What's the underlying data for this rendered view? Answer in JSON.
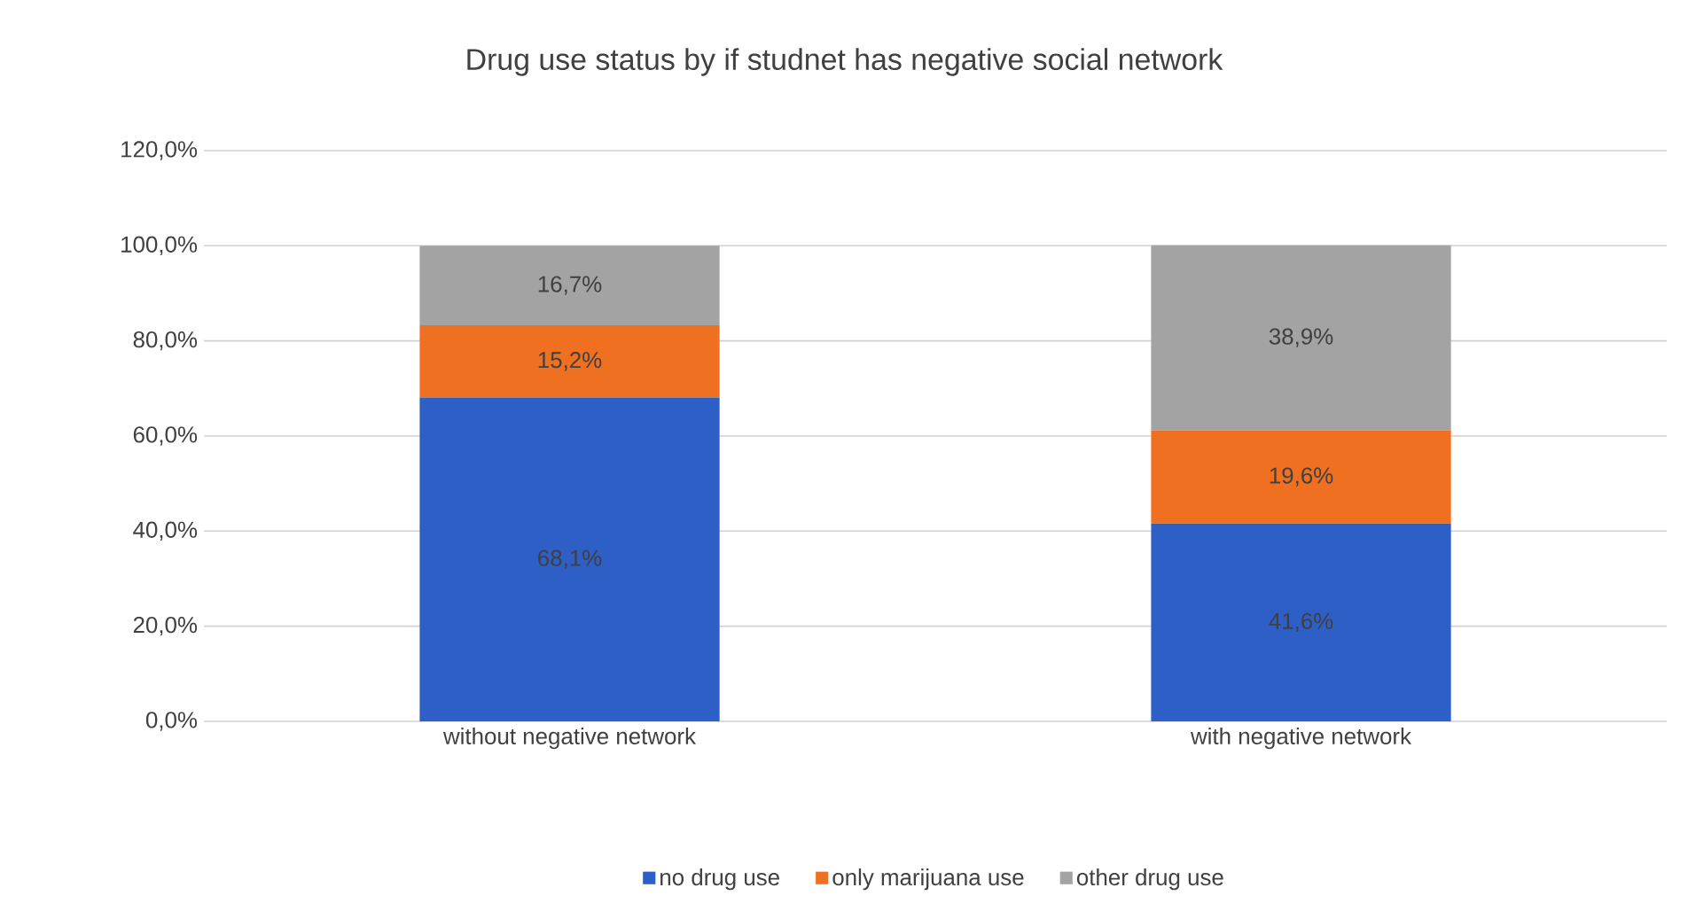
{
  "chart_data": {
    "type": "bar",
    "stacked": true,
    "title": "Drug use status by if studnet has negative social network",
    "categories": [
      "without negative network",
      "with negative network"
    ],
    "series": [
      {
        "name": "no drug use",
        "color": "#2e5fc6",
        "values": [
          68.1,
          41.6
        ],
        "value_labels": [
          "68,1%",
          "41,6%"
        ]
      },
      {
        "name": "only marijuana use",
        "color": "#f07022",
        "values": [
          15.2,
          19.6
        ],
        "value_labels": [
          "15,2%",
          "19,6%"
        ]
      },
      {
        "name": "other drug use",
        "color": "#a3a3a3",
        "values": [
          16.7,
          38.9
        ],
        "value_labels": [
          "16,7%",
          "38,9%"
        ]
      }
    ],
    "ylim": [
      0,
      120
    ],
    "yticks": [
      {
        "value": 0,
        "label": "0,0%"
      },
      {
        "value": 20,
        "label": "20,0%"
      },
      {
        "value": 40,
        "label": "40,0%"
      },
      {
        "value": 60,
        "label": "60,0%"
      },
      {
        "value": 80,
        "label": "80,0%"
      },
      {
        "value": 100,
        "label": "100,0%"
      },
      {
        "value": 120,
        "label": "120,0%"
      }
    ],
    "grid": "y",
    "legend": "bottom"
  }
}
